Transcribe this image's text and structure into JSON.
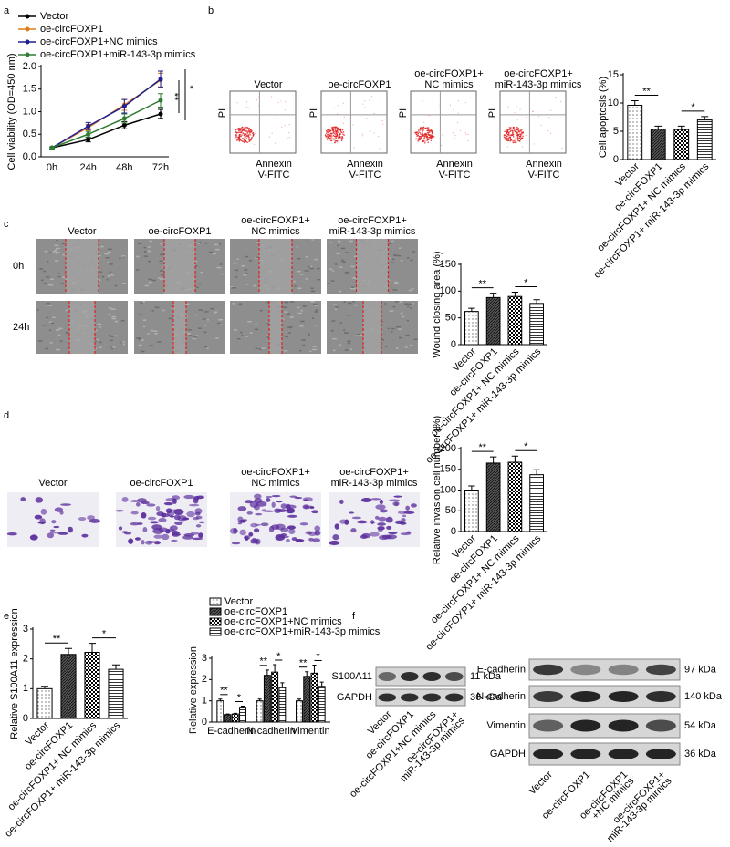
{
  "panel_letters": [
    "a",
    "b",
    "c",
    "d",
    "e",
    "f"
  ],
  "chart_data": [
    {
      "type": "line",
      "y_label": "Cell viability (OD=450 nm)",
      "categories": [
        "0h",
        "24h",
        "48h",
        "72h"
      ],
      "ylim": [
        0,
        2
      ],
      "yticks": [
        {
          "value": 0,
          "label": "0.0"
        },
        0.5,
        {
          "value": 1,
          "label": "1.0"
        },
        1.5,
        {
          "value": 2,
          "label": "2.0"
        }
      ],
      "series": [
        {
          "name": "Vector",
          "color": "#000000",
          "values": [
            0.2,
            0.38,
            0.7,
            0.95
          ],
          "errors": [
            0.02,
            0.05,
            0.08,
            0.1
          ]
        },
        {
          "name": "oe-circFOXP1",
          "color": "#e07b1a",
          "values": [
            0.2,
            0.65,
            1.15,
            1.7
          ],
          "errors": [
            0.02,
            0.07,
            0.12,
            0.15
          ]
        },
        {
          "name": "oe-circFOXP1+NC mimics",
          "color": "#1f1f8f",
          "values": [
            0.2,
            0.68,
            1.12,
            1.72
          ],
          "errors": [
            0.02,
            0.08,
            0.15,
            0.18
          ]
        },
        {
          "name": "oe-circFOXP1+miR-143-3p mimics",
          "color": "#2e7d32",
          "values": [
            0.2,
            0.5,
            0.85,
            1.25
          ],
          "errors": [
            0.02,
            0.06,
            0.1,
            0.15
          ]
        }
      ],
      "annotations": [
        "**",
        "*"
      ]
    },
    {
      "type": "bar",
      "y_label": "Cell apoptosis (%)",
      "categories": [
        "Vector",
        "oe-circFOXP1",
        "oe-circFOXP1+ NC mimics",
        "oe-circFOXP1+ miR-143-3p mimics"
      ],
      "values": [
        9.6,
        5.4,
        5.3,
        7.0
      ],
      "errors": [
        0.8,
        0.5,
        0.6,
        0.6
      ],
      "ylim": [
        0,
        15
      ],
      "yticks": [
        0,
        5,
        10,
        15
      ],
      "annotations": [
        "**",
        "*"
      ]
    },
    {
      "type": "bar",
      "y_label": "Wound closing area (%)",
      "categories": [
        "Vector",
        "oe-circFOXP1",
        "oe-circFOXP1+ NC mimics",
        "oe-circFOXP1+ miR-143-3p mimics"
      ],
      "values": [
        62,
        88,
        90,
        77
      ],
      "errors": [
        6,
        8,
        8,
        7
      ],
      "ylim": [
        0,
        150
      ],
      "yticks": [
        0,
        50,
        100,
        150
      ],
      "annotations": [
        "**",
        "*"
      ]
    },
    {
      "type": "bar",
      "y_label": "Relative invasion cell number (%)",
      "categories": [
        "Vector",
        "oe-circFOXP1",
        "oe-circFOXP1+ NC mimics",
        "oe-circFOXP1+ miR-143-3p mimics"
      ],
      "values": [
        100,
        165,
        167,
        137
      ],
      "errors": [
        10,
        15,
        15,
        12
      ],
      "ylim": [
        0,
        200
      ],
      "yticks": [
        0,
        50,
        100,
        150,
        200
      ],
      "annotations": [
        "**",
        "*"
      ]
    },
    {
      "type": "bar",
      "y_label": "Relative S100A11  expression",
      "categories": [
        "Vector",
        "oe-circFOXP1",
        "oe-circFOXP1+ NC mimics",
        "oe-circFOXP1+ miR-143-3p mimics"
      ],
      "values": [
        1.0,
        2.15,
        2.22,
        1.65
      ],
      "errors": [
        0.08,
        0.2,
        0.3,
        0.15
      ],
      "ylim": [
        0,
        3
      ],
      "yticks": [
        0,
        1,
        2,
        3
      ],
      "annotations": [
        "**",
        "*"
      ]
    },
    {
      "type": "grouped_bar",
      "y_label": "Relative expression",
      "categories": [
        "E-cadherin",
        "N-cadherin",
        "Vimentin"
      ],
      "ylim": [
        0,
        3
      ],
      "yticks": [
        0,
        1,
        2,
        3
      ],
      "series": [
        {
          "name": "Vector",
          "values": [
            1.0,
            1.0,
            1.0
          ],
          "errors": [
            0.08,
            0.08,
            0.08
          ]
        },
        {
          "name": "oe-circFOXP1",
          "values": [
            0.35,
            2.2,
            2.15
          ],
          "errors": [
            0.03,
            0.25,
            0.22
          ]
        },
        {
          "name": "oe-circFOXP1+NC mimics",
          "values": [
            0.38,
            2.35,
            2.3
          ],
          "errors": [
            0.03,
            0.35,
            0.38
          ]
        },
        {
          "name": "oe-circFOXP1+miR-143-3p mimics",
          "values": [
            0.7,
            1.65,
            1.68
          ],
          "errors": [
            0.05,
            0.2,
            0.2
          ]
        }
      ],
      "annotations": [
        "**",
        "*",
        "**",
        "*",
        "**",
        "*"
      ]
    }
  ],
  "flow_panel": {
    "titles": [
      [
        "Vector"
      ],
      [
        "oe-circFOXP1"
      ],
      [
        "oe-circFOXP1+",
        "NC mimics"
      ],
      [
        "oe-circFOXP1+",
        "miR-143-3p mimics"
      ]
    ],
    "y_label": "PI",
    "x_label": [
      "Annexin",
      "V-FITC"
    ]
  },
  "wound_panel": {
    "titles": [
      [
        "Vector"
      ],
      [
        "oe-circFOXP1"
      ],
      [
        "oe-circFOXP1+",
        "NC mimics"
      ],
      [
        "oe-circFOXP1+",
        "miR-143-3p mimics"
      ]
    ],
    "rows": [
      "0h",
      "24h"
    ]
  },
  "invasion_panel": {
    "titles": [
      [
        "Vector"
      ],
      [
        "oe-circFOXP1"
      ],
      [
        "oe-circFOXP1+",
        "NC mimics"
      ],
      [
        "oe-circFOXP1+",
        "miR-143-3p mimics"
      ]
    ]
  },
  "blot_left": {
    "proteins": [
      "S100A11",
      "GAPDH"
    ],
    "sizes": [
      "11 kDa",
      "36 kDa"
    ],
    "lanes": [
      [
        "Vector"
      ],
      [
        "oe-circFOXP1"
      ],
      [
        "oe-circFOXP1+NC mimics"
      ],
      [
        "oe-circFOXP1+",
        "miR-143-3p mimics"
      ]
    ]
  },
  "blot_right": {
    "proteins": [
      "E-cadherin",
      "N-cadherin",
      "Vimentin",
      "GAPDH"
    ],
    "sizes": [
      "97 kDa",
      "140 kDa",
      "54 kDa",
      "36 kDa"
    ],
    "lanes": [
      [
        "Vector"
      ],
      [
        "oe-circFOXP1"
      ],
      [
        "oe-circFOXP1",
        "+NC mimics"
      ],
      [
        "oe-circFOXP1+",
        "miR-143-3p mimics"
      ]
    ]
  }
}
